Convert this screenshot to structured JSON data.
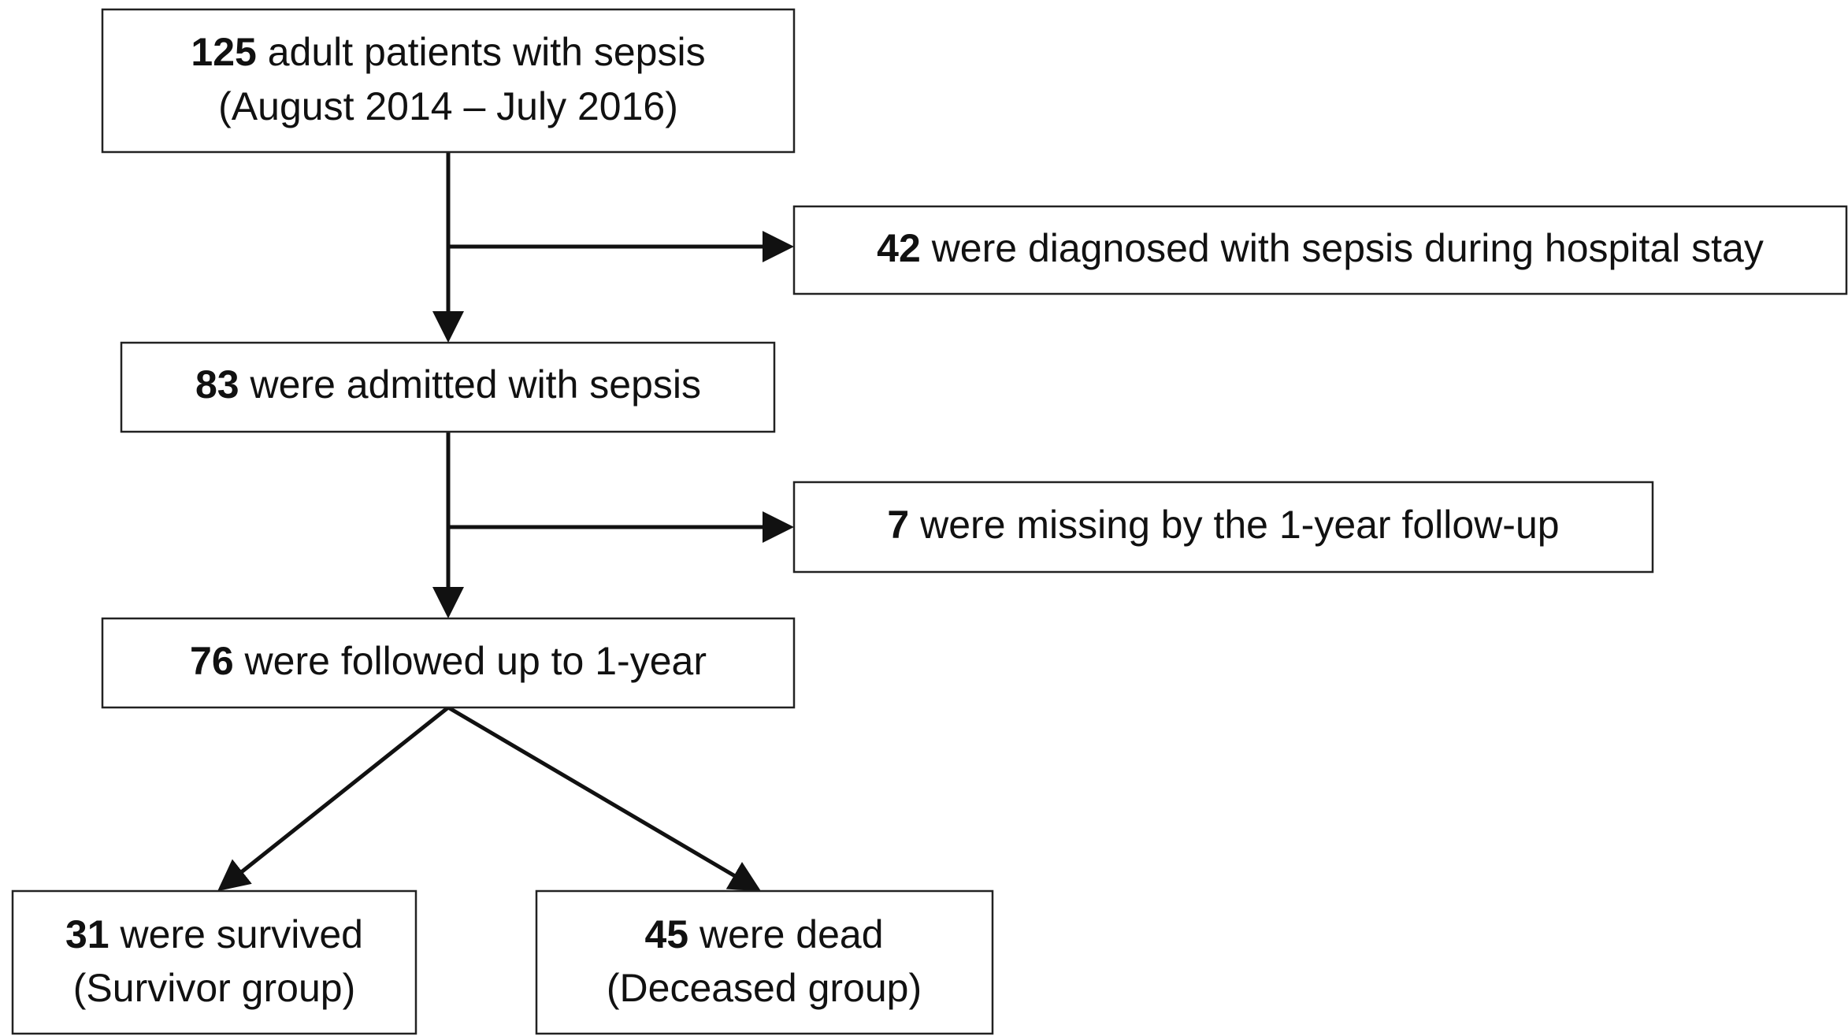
{
  "nodes": [
    {
      "count": 125,
      "text": "adult patients with sepsis",
      "note": "(August 2014 – July 2016)"
    },
    {
      "count": 42,
      "text": "were diagnosed with sepsis during hospital stay"
    },
    {
      "count": 83,
      "text": "were admitted with sepsis"
    },
    {
      "count": 7,
      "text": "were missing by the 1-year follow-up"
    },
    {
      "count": 76,
      "text": "were followed up to 1-year"
    },
    {
      "count": 31,
      "text": "were survived",
      "note": "(Survivor group)"
    },
    {
      "count": 45,
      "text": "were dead",
      "note": "(Deceased group)"
    }
  ]
}
